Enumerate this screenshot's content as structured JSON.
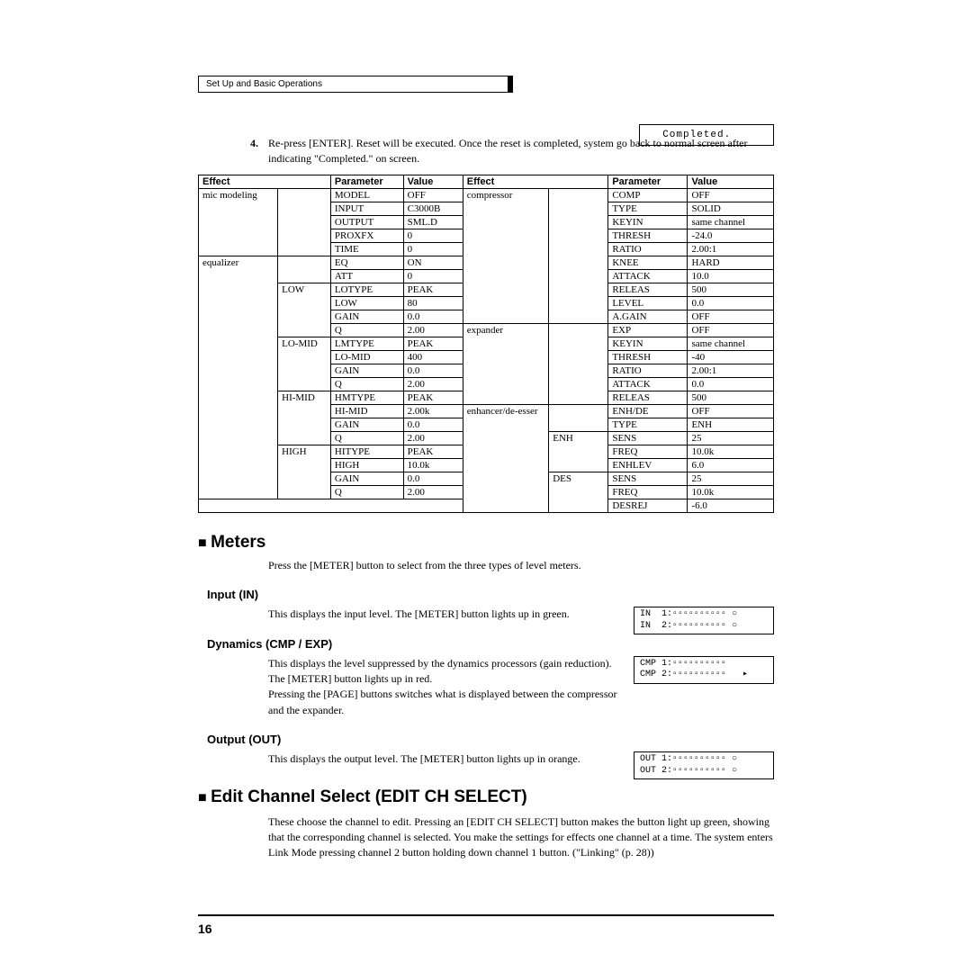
{
  "breadcrumb": "Set Up and Basic Operations",
  "step": {
    "num": "4.",
    "text": "Re-press [ENTER]. Reset will be executed. Once the reset is completed, system go back to normal screen after indicating \"Completed.\" on screen."
  },
  "lcd_completed": "  Completed.",
  "table": {
    "headers": [
      "Effect",
      "Parameter",
      "Value",
      "Effect",
      "Parameter",
      "Value"
    ],
    "left_groups": [
      {
        "effect": "mic modeling",
        "sub": "",
        "rows": [
          [
            "MODEL",
            "OFF"
          ],
          [
            "INPUT",
            "C3000B"
          ],
          [
            "OUTPUT",
            "SML.D"
          ],
          [
            "PROXFX",
            "0"
          ],
          [
            "TIME",
            "0"
          ]
        ]
      },
      {
        "effect": "equalizer",
        "sub": "",
        "rows": [
          [
            "EQ",
            "ON"
          ],
          [
            "ATT",
            "0"
          ]
        ]
      },
      {
        "effect": "",
        "sub": "LOW",
        "rows": [
          [
            "LOTYPE",
            "PEAK"
          ],
          [
            "LOW",
            "80"
          ],
          [
            "GAIN",
            "0.0"
          ],
          [
            "Q",
            "2.00"
          ]
        ]
      },
      {
        "effect": "",
        "sub": "LO-MID",
        "rows": [
          [
            "LMTYPE",
            "PEAK"
          ],
          [
            "LO-MID",
            "400"
          ],
          [
            "GAIN",
            "0.0"
          ],
          [
            "Q",
            "2.00"
          ]
        ]
      },
      {
        "effect": "",
        "sub": "HI-MID",
        "rows": [
          [
            "HMTYPE",
            "PEAK"
          ],
          [
            "HI-MID",
            "2.00k"
          ],
          [
            "GAIN",
            "0.0"
          ],
          [
            "Q",
            "2.00"
          ]
        ]
      },
      {
        "effect": "",
        "sub": "HIGH",
        "rows": [
          [
            "HITYPE",
            "PEAK"
          ],
          [
            "HIGH",
            "10.0k"
          ],
          [
            "GAIN",
            "0.0"
          ],
          [
            "Q",
            "2.00"
          ]
        ]
      }
    ],
    "right_groups": [
      {
        "effect": "compressor",
        "sub": "",
        "rows": [
          [
            "COMP",
            "OFF"
          ],
          [
            "TYPE",
            "SOLID"
          ],
          [
            "KEYIN",
            "same channel"
          ],
          [
            "THRESH",
            "-24.0"
          ],
          [
            "RATIO",
            "2.00:1"
          ],
          [
            "KNEE",
            "HARD"
          ],
          [
            "ATTACK",
            "10.0"
          ],
          [
            "RELEAS",
            "500"
          ],
          [
            "LEVEL",
            "0.0"
          ],
          [
            "A.GAIN",
            "OFF"
          ]
        ]
      },
      {
        "effect": "expander",
        "sub": "",
        "rows": [
          [
            "EXP",
            "OFF"
          ],
          [
            "KEYIN",
            "same channel"
          ],
          [
            "THRESH",
            "-40"
          ],
          [
            "RATIO",
            "2.00:1"
          ],
          [
            "ATTACK",
            "0.0"
          ],
          [
            "RELEAS",
            "500"
          ]
        ]
      },
      {
        "effect": "enhancer/de-esser",
        "sub": "",
        "rows": [
          [
            "ENH/DE",
            "OFF"
          ],
          [
            "TYPE",
            "ENH"
          ]
        ]
      },
      {
        "effect": "",
        "sub": "ENH",
        "rows": [
          [
            "SENS",
            "25"
          ],
          [
            "FREQ",
            "10.0k"
          ],
          [
            "ENHLEV",
            "6.0"
          ]
        ]
      },
      {
        "effect": "",
        "sub": "DES",
        "rows": [
          [
            "SENS",
            "25"
          ],
          [
            "FREQ",
            "10.0k"
          ],
          [
            "DESREJ",
            "-6.0"
          ]
        ]
      }
    ]
  },
  "meters": {
    "heading": "Meters",
    "intro": "Press the [METER] button to select from the three types of level meters.",
    "input": {
      "heading": "Input (IN)",
      "text": "This displays the input level. The [METER] button lights up in green.",
      "lcd": "IN  1:▫▫▫▫▫▫▫▫▫▫ ○\nIN  2:▫▫▫▫▫▫▫▫▫▫ ○"
    },
    "dyn": {
      "heading": "Dynamics (CMP / EXP)",
      "text": "This displays the level suppressed by the dynamics processors (gain reduction). The [METER] button lights up in red.\nPressing the [PAGE] buttons switches what is displayed between the compressor and the expander.",
      "lcd": "CMP 1:▫▫▫▫▫▫▫▫▫▫\nCMP 2:▫▫▫▫▫▫▫▫▫▫   ▸"
    },
    "out": {
      "heading": "Output (OUT)",
      "text": "This displays the output level. The [METER] button lights up in orange.",
      "lcd": "OUT 1:▫▫▫▫▫▫▫▫▫▫ ○\nOUT 2:▫▫▫▫▫▫▫▫▫▫ ○"
    }
  },
  "editch": {
    "heading": "Edit Channel Select (EDIT CH SELECT)",
    "text": "These choose the channel to edit. Pressing an [EDIT CH SELECT] button makes the button light up green, showing that the corresponding channel is selected. You make the settings for effects one channel at a time. The system enters Link Mode pressing channel 2 button holding down channel 1 button. (\"Linking\" (p. 28))"
  },
  "page_number": "16"
}
